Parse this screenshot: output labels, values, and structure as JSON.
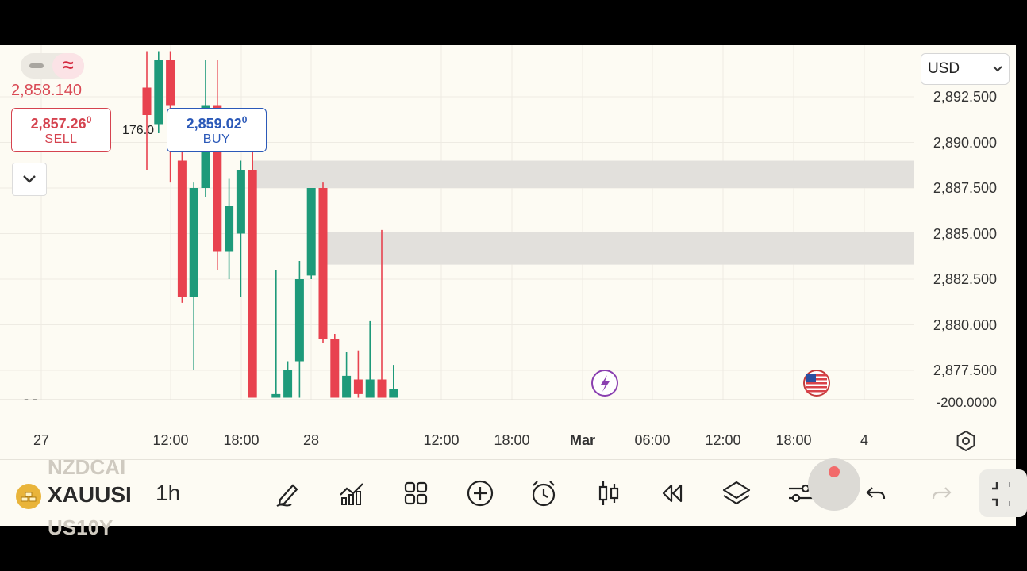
{
  "header": {
    "currency": "USD",
    "last_price": "2,858.140",
    "spread": "176.0"
  },
  "sell": {
    "price": "2,857.26",
    "price_sup": "0",
    "label": "SELL"
  },
  "buy": {
    "price": "2,859.02",
    "price_sup": "0",
    "label": "BUY"
  },
  "price_axis": {
    "labels": [
      "2,892.500",
      "2,890.000",
      "2,887.500",
      "2,885.000",
      "2,882.500",
      "2,880.000",
      "2,877.500"
    ],
    "indicator_label": "-200.0000",
    "indicator_left_mark": "- -"
  },
  "time_axis": {
    "labels": [
      {
        "text": "27",
        "bold": false
      },
      {
        "text": "12:00",
        "bold": false
      },
      {
        "text": "18:00",
        "bold": false
      },
      {
        "text": "28",
        "bold": false
      },
      {
        "text": "12:00",
        "bold": false
      },
      {
        "text": "18:00",
        "bold": false
      },
      {
        "text": "Mar",
        "bold": true
      },
      {
        "text": "06:00",
        "bold": false
      },
      {
        "text": "12:00",
        "bold": false
      },
      {
        "text": "18:00",
        "bold": false
      },
      {
        "text": "4",
        "bold": false
      }
    ]
  },
  "toolbar": {
    "symbol_prev": "NZDCAI",
    "symbol": "XAUUSI",
    "symbol_next": "US10Y",
    "timeframe": "1h",
    "icons": [
      "pencil-icon",
      "indicators-icon",
      "grid-icon",
      "plus-circle-icon",
      "alarm-icon",
      "candle-type-icon",
      "rewind-icon",
      "layers-icon",
      "sliders-icon",
      "undo-icon",
      "redo-icon",
      "fullscreen-icon"
    ]
  },
  "colors": {
    "up": "#1e9a7a",
    "down": "#e8424f",
    "zone": "#e2e0dc",
    "background": "#fdfbf3"
  },
  "chart_data": {
    "type": "candlestick",
    "candles": [
      {
        "time": "27 11:00",
        "open": 2893.0,
        "high": 2895.0,
        "low": 2888.5,
        "close": 2891.5
      },
      {
        "time": "27 12:00",
        "open": 2891.0,
        "high": 2895.0,
        "low": 2890.5,
        "close": 2894.5
      },
      {
        "time": "27 13:00",
        "open": 2894.5,
        "high": 2895.0,
        "low": 2887.8,
        "close": 2892.0
      },
      {
        "time": "27 14:00",
        "open": 2889.0,
        "high": 2889.5,
        "low": 2881.2,
        "close": 2881.5
      },
      {
        "time": "27 15:00",
        "open": 2881.5,
        "high": 2887.8,
        "low": 2877.5,
        "close": 2887.5
      },
      {
        "time": "27 16:00",
        "open": 2887.5,
        "high": 2894.5,
        "low": 2887.0,
        "close": 2892.0
      },
      {
        "time": "27 17:00",
        "open": 2892.0,
        "high": 2894.5,
        "low": 2883.0,
        "close": 2884.0
      },
      {
        "time": "27 18:00",
        "open": 2884.0,
        "high": 2888.0,
        "low": 2882.5,
        "close": 2886.5
      },
      {
        "time": "27 19:00",
        "open": 2885.0,
        "high": 2889.0,
        "low": 2881.5,
        "close": 2888.5
      },
      {
        "time": "27 20:00",
        "open": 2888.5,
        "high": 2891.5,
        "low": 2876.0,
        "close": 2876.0
      },
      {
        "time": "27 22:00",
        "open": 2876.0,
        "high": 2883.0,
        "low": 2876.0,
        "close": 2876.2
      },
      {
        "time": "27 23:00",
        "open": 2876.0,
        "high": 2878.0,
        "low": 2876.0,
        "close": 2877.5
      },
      {
        "time": "28 00:00",
        "open": 2878.0,
        "high": 2883.5,
        "low": 2876.0,
        "close": 2882.5
      },
      {
        "time": "28 01:00",
        "open": 2882.7,
        "high": 2887.5,
        "low": 2882.5,
        "close": 2887.5
      },
      {
        "time": "28 02:00",
        "open": 2887.5,
        "high": 2887.8,
        "low": 2879.0,
        "close": 2879.2
      },
      {
        "time": "28 03:00",
        "open": 2879.2,
        "high": 2879.5,
        "low": 2876.0,
        "close": 2876.0
      },
      {
        "time": "28 04:00",
        "open": 2876.0,
        "high": 2878.5,
        "low": 2876.0,
        "close": 2877.2
      },
      {
        "time": "28 05:00",
        "open": 2877.0,
        "high": 2878.6,
        "low": 2876.0,
        "close": 2876.2
      },
      {
        "time": "28 06:00",
        "open": 2876.0,
        "high": 2880.2,
        "low": 2876.0,
        "close": 2877.0
      },
      {
        "time": "28 07:00",
        "open": 2877.0,
        "high": 2885.2,
        "low": 2876.0,
        "close": 2876.0
      },
      {
        "time": "28 08:00",
        "open": 2876.0,
        "high": 2877.8,
        "low": 2876.0,
        "close": 2876.5
      }
    ],
    "zones": [
      {
        "from": 2887.5,
        "to": 2889.0
      },
      {
        "from": 2883.3,
        "to": 2885.1
      }
    ],
    "y_labels": [
      2892.5,
      2890.0,
      2887.5,
      2885.0,
      2882.5,
      2880.0,
      2877.5
    ]
  }
}
